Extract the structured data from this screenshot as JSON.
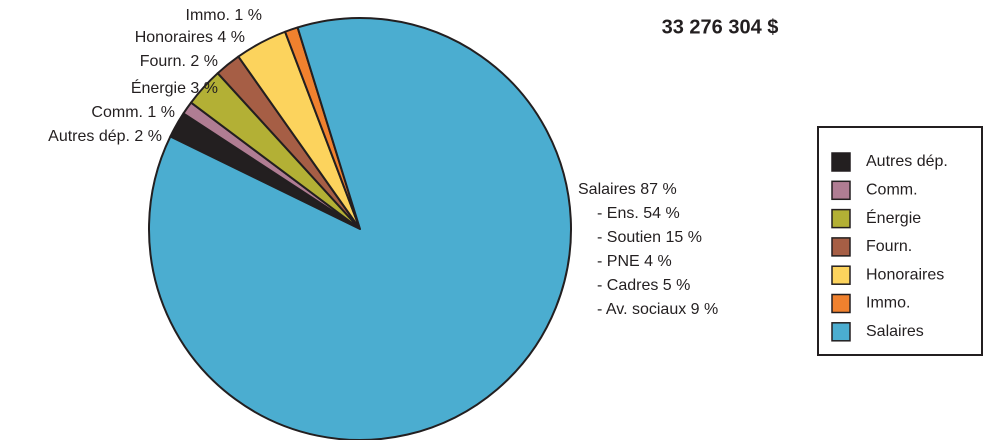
{
  "chart_data": {
    "type": "pie",
    "title": "33 276 304 $",
    "categories": [
      "Autres dép.",
      "Comm.",
      "Énergie",
      "Fourn.",
      "Honoraires",
      "Immo.",
      "Salaires"
    ],
    "values": [
      2,
      1,
      3,
      2,
      4,
      1,
      87
    ],
    "value_labels": [
      "Autres dép. 2 %",
      "Comm. 1 %",
      "Énergie 3 %",
      "Fourn. 2 %",
      "Honoraires 4 %",
      "Immo. 1 %",
      "Salaires 87 %"
    ],
    "colors": [
      "#231f20",
      "#b07d93",
      "#b3b035",
      "#a65e45",
      "#fcd35d",
      "#f0812e",
      "#4badd0"
    ],
    "annotations": [
      "- Ens. 54 %",
      "- Soutien 15 %",
      "- PNE 4 %",
      "- Cadres 5 %",
      "- Av. sociaux 9 %"
    ],
    "legend": "right"
  }
}
